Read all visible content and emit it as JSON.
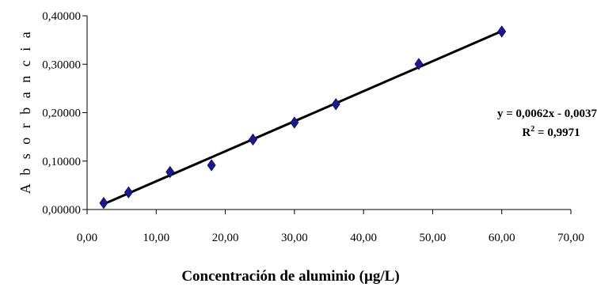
{
  "chart_data": {
    "type": "scatter",
    "xlabel": "Concentración de aluminio (µg/L)",
    "ylabel": "A b s o r b a n c i a",
    "xlim": [
      0,
      70
    ],
    "ylim": [
      0,
      0.4
    ],
    "xticks": [
      0,
      10,
      20,
      30,
      40,
      50,
      60,
      70
    ],
    "yticks": [
      0,
      0.1,
      0.2,
      0.3,
      0.4
    ],
    "xtick_labels": [
      "0,00",
      "10,00",
      "20,00",
      "30,00",
      "40,00",
      "50,00",
      "60,00",
      "70,00"
    ],
    "ytick_labels": [
      "0,00000",
      "0,10000",
      "0,20000",
      "0,30000",
      "0,40000"
    ],
    "grid": false,
    "legend": "none",
    "marker_color": "#1a1a8c",
    "line_color": "#000000",
    "series": [
      {
        "marker": "diamond",
        "x": [
          2.4,
          6.0,
          12.0,
          18.0,
          24.0,
          30.0,
          36.0,
          48.0,
          60.0
        ],
        "y": [
          0.0135,
          0.0355,
          0.0775,
          0.0915,
          0.1445,
          0.1795,
          0.2175,
          0.3005,
          0.3675
        ]
      }
    ],
    "trendline": {
      "slope": 0.0062,
      "intercept": -0.0037,
      "x_range": [
        2.4,
        60.0
      ]
    },
    "equation_text": "y = 0,0062x - 0,0037",
    "r2_text": "R",
    "r2_sup": "2",
    "r2_value": " = 0,9971"
  }
}
